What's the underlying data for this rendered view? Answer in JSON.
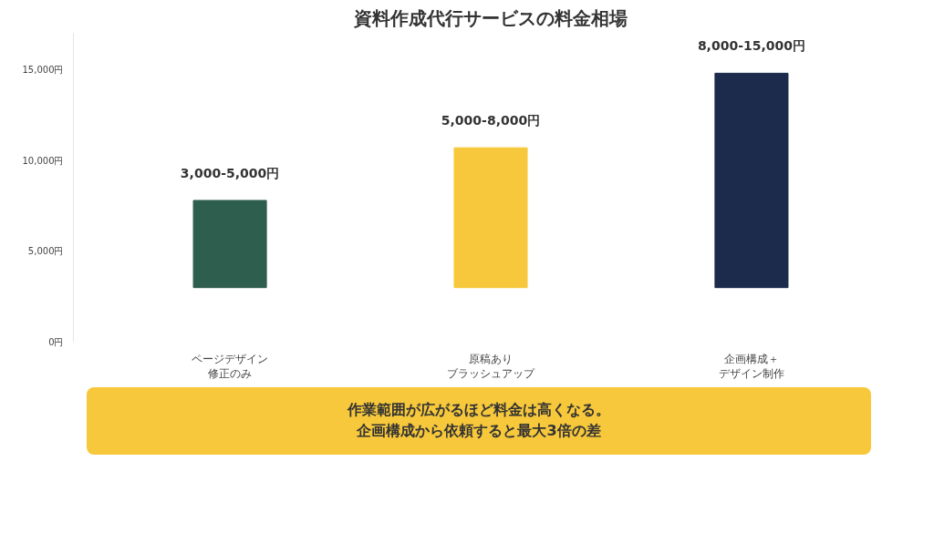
{
  "chart_data": {
    "type": "bar",
    "title": "資料作成代行サービスの料金相場",
    "categories": [
      "ページデザイン修正のみ",
      "原稿ありブラッシュアップ",
      "企画構成＋デザイン制作"
    ],
    "base": [
      3000,
      3000,
      3000
    ],
    "values": [
      4800,
      7700,
      11800
    ],
    "colors": [
      "#2e5e4e",
      "#f7c83b",
      "#1c2b4b"
    ],
    "value_labels": [
      "3,000-5,000円",
      "5,000-8,000円",
      "8,000-15,000円"
    ],
    "ylim": [
      0,
      17000
    ],
    "yticks": [
      {
        "value": 0,
        "label": "0円"
      },
      {
        "value": 5000,
        "label": "5,000円"
      },
      {
        "value": 10000,
        "label": "10,000円"
      },
      {
        "value": 15000,
        "label": "15,000円"
      }
    ],
    "grid": false,
    "annotations": [
      "作業範囲が広がるほど料金は高くなる。企画構成から依頼すると最大3倍の差"
    ]
  }
}
